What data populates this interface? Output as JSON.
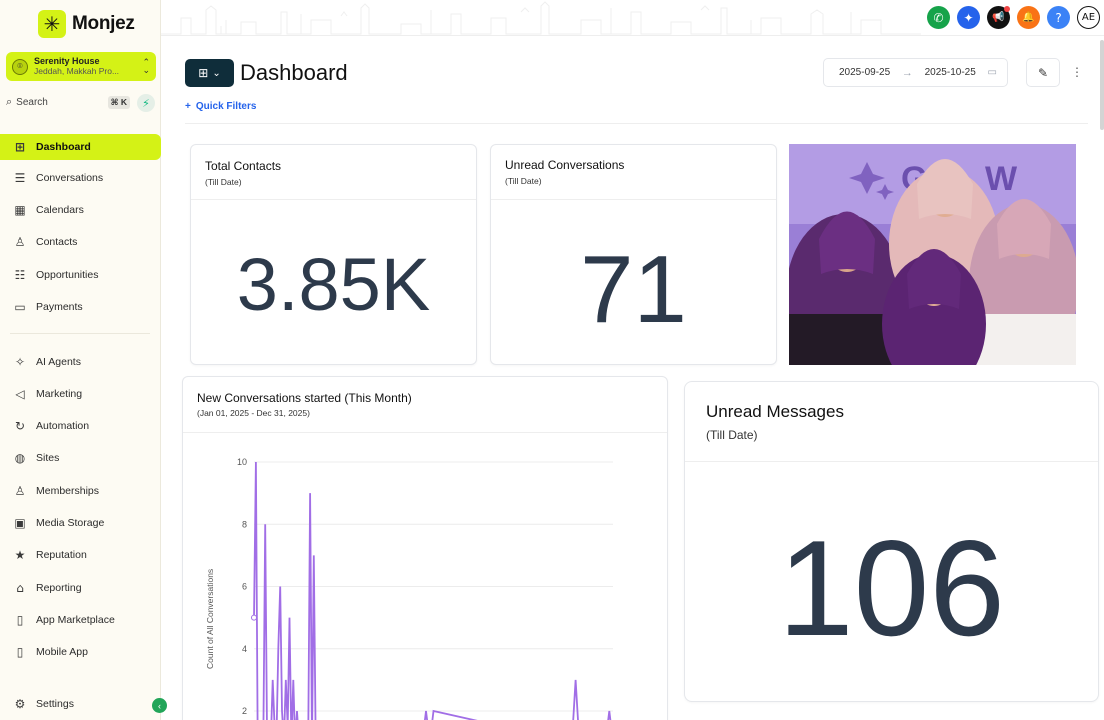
{
  "brand": {
    "name": "Monjez",
    "logo_icon": "spark-logo-icon"
  },
  "account": {
    "name": "Serenity House",
    "location": "Jeddah, Makkah Pro..."
  },
  "search": {
    "label": "Search",
    "shortcut": "⌘ K"
  },
  "sidebar": {
    "items": [
      {
        "id": "dashboard",
        "label": "Dashboard",
        "icon": "grid-icon",
        "active": true
      },
      {
        "id": "conversations",
        "label": "Conversations",
        "icon": "chat-icon"
      },
      {
        "id": "calendars",
        "label": "Calendars",
        "icon": "calendar-icon"
      },
      {
        "id": "contacts",
        "label": "Contacts",
        "icon": "person-add-icon"
      },
      {
        "id": "opportunities",
        "label": "Opportunities",
        "icon": "list-check-icon"
      },
      {
        "id": "payments",
        "label": "Payments",
        "icon": "card-icon"
      },
      {
        "id": "ai-agents",
        "label": "AI Agents",
        "icon": "sparkles-icon"
      },
      {
        "id": "marketing",
        "label": "Marketing",
        "icon": "megaphone-icon"
      },
      {
        "id": "automation",
        "label": "Automation",
        "icon": "refresh-icon"
      },
      {
        "id": "sites",
        "label": "Sites",
        "icon": "globe-icon"
      },
      {
        "id": "memberships",
        "label": "Memberships",
        "icon": "user-list-icon"
      },
      {
        "id": "media-storage",
        "label": "Media Storage",
        "icon": "image-icon"
      },
      {
        "id": "reputation",
        "label": "Reputation",
        "icon": "star-icon"
      },
      {
        "id": "reporting",
        "label": "Reporting",
        "icon": "bank-icon"
      },
      {
        "id": "app-marketplace",
        "label": "App Marketplace",
        "icon": "phone-outline-icon"
      },
      {
        "id": "mobile-app",
        "label": "Mobile App",
        "icon": "mobile-icon"
      }
    ],
    "settings_label": "Settings"
  },
  "topbar": {
    "icons": [
      {
        "name": "phone-icon",
        "color": "#16a34a",
        "glyph": "✆"
      },
      {
        "name": "magic-icon",
        "color": "#2563eb",
        "glyph": "✦"
      },
      {
        "name": "announcement-icon",
        "color": "#111111",
        "glyph": "📢"
      },
      {
        "name": "bell-icon",
        "color": "#f97316",
        "glyph": "🔔"
      },
      {
        "name": "help-icon",
        "color": "#3b82f6",
        "glyph": "?"
      }
    ],
    "avatar_initials": "AE"
  },
  "header": {
    "title": "Dashboard",
    "quick_filters_label": "Quick Filters",
    "date_from": "2025-09-25",
    "date_to": "2025-10-25"
  },
  "cards": {
    "total_contacts": {
      "title": "Total Contacts",
      "subtitle": "(Till Date)",
      "value": "3.85K"
    },
    "unread_conversations": {
      "title": "Unread Conversations",
      "subtitle": "(Till Date)",
      "value": "71"
    },
    "unread_messages": {
      "title": "Unread Messages",
      "subtitle": "(Till Date)",
      "value": "106"
    },
    "new_conversations": {
      "title": "New Conversations started (This Month)",
      "subtitle": "(Jan 01, 2025 - Dec 31, 2025)"
    }
  },
  "chart_data": {
    "type": "line",
    "title": "New Conversations started (This Month)",
    "subtitle": "(Jan 01, 2025 - Dec 31, 2025)",
    "ylabel": "Count of All Conversations",
    "xlabel": "",
    "ylim": [
      2,
      10
    ],
    "yticks": [
      2,
      4,
      6,
      8,
      10
    ],
    "grid": true,
    "legend": "none",
    "series": [
      {
        "color": "#a16ee6",
        "x": [
          0,
          0.5,
          1,
          1.5,
          2,
          2.5,
          3,
          3.5,
          4,
          4.5,
          5,
          5.5,
          6,
          6.5,
          7,
          7.5,
          8,
          8.5,
          9,
          9.5,
          10,
          10.5,
          11,
          11.5,
          12,
          12.5,
          13,
          13.5,
          14,
          14.5,
          15,
          15.5,
          16,
          16.5,
          17,
          17.5,
          18,
          18.5,
          19,
          19.5,
          20,
          20.5,
          21,
          21.5,
          22,
          22.5,
          23,
          23.5,
          24,
          24.5,
          25,
          25.5,
          26,
          27,
          28,
          29,
          30,
          40,
          45,
          46,
          47,
          48,
          85,
          86,
          87,
          94,
          95,
          96
        ],
        "y": [
          5,
          10,
          1,
          1,
          1,
          1,
          8,
          1,
          1,
          1,
          3,
          1.5,
          1,
          4,
          6,
          2,
          1,
          3,
          1.5,
          5,
          1,
          3,
          1,
          2,
          1,
          1,
          1,
          1,
          1,
          1,
          9,
          1,
          7,
          1,
          1.5,
          1,
          1,
          1,
          1,
          1,
          1,
          1,
          1,
          1,
          1,
          1,
          1,
          1,
          1,
          1,
          1,
          1,
          1,
          1,
          1,
          1,
          1,
          1,
          1,
          2,
          1,
          2,
          1,
          3,
          1,
          1,
          2,
          1
        ]
      }
    ]
  }
}
